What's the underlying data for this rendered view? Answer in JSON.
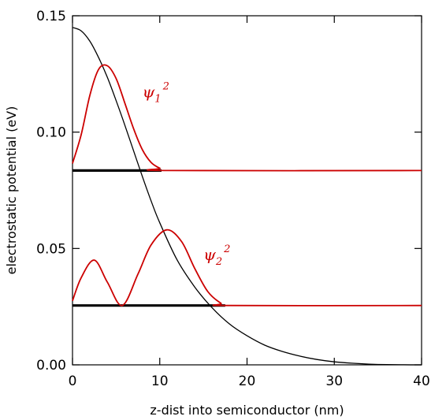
{
  "chart_data": {
    "type": "line",
    "xlabel": "z-dist into semiconductor (nm)",
    "ylabel": "electrostatic potential (eV)",
    "xlim": [
      0,
      40
    ],
    "ylim": [
      0,
      0.15
    ],
    "x_ticks": [
      "0",
      "10",
      "20",
      "30",
      "40"
    ],
    "y_ticks": [
      "0.00",
      "0.05",
      "0.10",
      "0.15"
    ],
    "grid": false,
    "colors": {
      "potential": "#000000",
      "wavefunction": "#cc0000",
      "level": "#000000"
    },
    "series": [
      {
        "role": "potential",
        "x": [
          0,
          1,
          2,
          3,
          4,
          5,
          6,
          7,
          8,
          9,
          10,
          12,
          14,
          16,
          18,
          20,
          22,
          24,
          26,
          28,
          30,
          32,
          34,
          36,
          38,
          40
        ],
        "y": [
          0.145,
          0.1435,
          0.139,
          0.132,
          0.1235,
          0.1135,
          0.103,
          0.092,
          0.081,
          0.0705,
          0.061,
          0.045,
          0.0335,
          0.0245,
          0.0175,
          0.0125,
          0.0085,
          0.0058,
          0.0038,
          0.0023,
          0.0013,
          0.0007,
          0.0003,
          0.0001,
          2e-05,
          0.0
        ]
      },
      {
        "name": "ψ1",
        "role": "wavefunction",
        "x": [
          0,
          1,
          2,
          3,
          4,
          5,
          6,
          7,
          8,
          9,
          10,
          11,
          40
        ],
        "y": [
          0.0865,
          0.099,
          0.116,
          0.127,
          0.1285,
          0.123,
          0.1125,
          0.1015,
          0.0925,
          0.087,
          0.0845,
          0.0835,
          0.0835
        ]
      },
      {
        "name": "ψ2",
        "role": "wavefunction",
        "x": [
          0,
          1,
          2.5,
          4,
          5.7,
          7.5,
          9,
          10.8,
          12.5,
          14,
          15.5,
          17,
          18,
          40
        ],
        "y": [
          0.0275,
          0.0375,
          0.045,
          0.0355,
          0.0255,
          0.039,
          0.0515,
          0.058,
          0.053,
          0.0415,
          0.0315,
          0.0265,
          0.0255,
          0.0255
        ]
      }
    ],
    "levels": [
      {
        "y": 0.0835,
        "x_start": 0,
        "x_end": 10.2
      },
      {
        "y": 0.0255,
        "x_start": 0,
        "x_end": 17.5
      }
    ],
    "annotations": [
      {
        "name": "ψ1",
        "sub": "1",
        "sup": "2",
        "x": 8,
        "y": 0.115
      },
      {
        "name": "ψ2",
        "sub": "2",
        "sup": "2",
        "x": 15,
        "y": 0.045
      }
    ]
  }
}
